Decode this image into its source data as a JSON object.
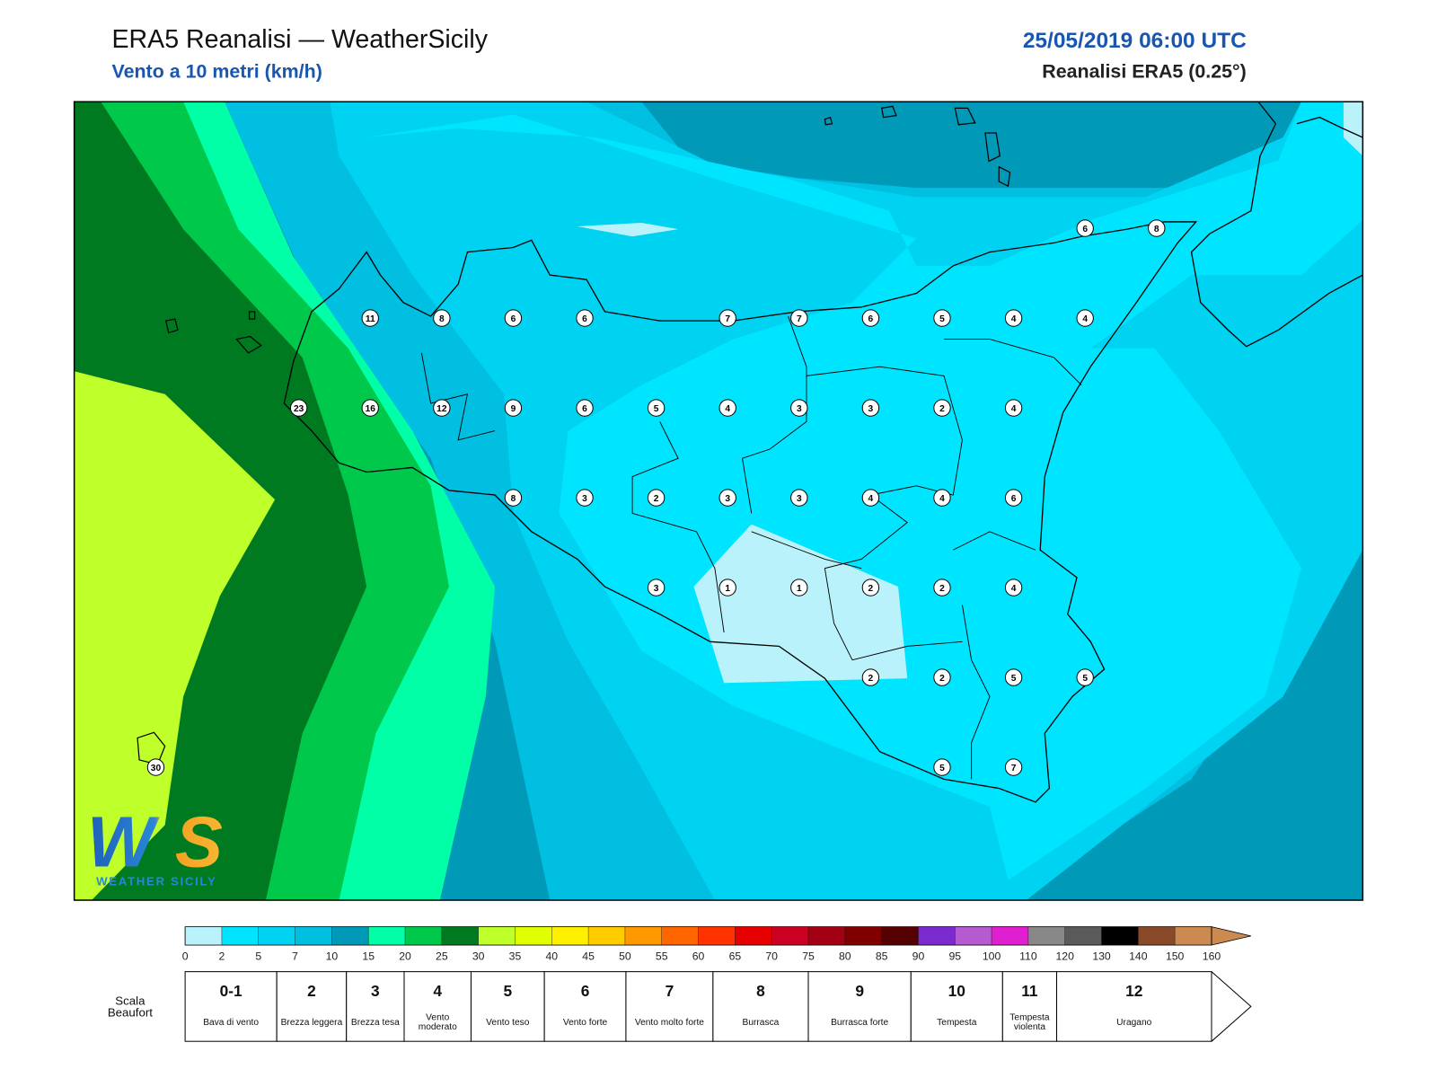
{
  "header": {
    "title": "ERA5 Reanalisi — WeatherSicily",
    "subtitle": "Vento a 10 metri (km/h)",
    "datetime": "25/05/2019 06:00 UTC",
    "source": "Reanalisi ERA5 (0.25°)"
  },
  "wind_points": {
    "rows": [
      [
        6,
        8
      ],
      [
        11,
        8,
        6,
        6,
        7,
        7,
        6,
        5,
        4,
        4
      ],
      [
        23,
        16,
        12,
        9,
        6,
        5,
        4,
        3,
        3,
        2,
        4
      ],
      [
        8,
        3,
        2,
        3,
        3,
        4,
        4,
        6
      ],
      [
        3,
        1,
        1,
        2,
        2,
        4
      ],
      [
        2,
        2,
        5,
        5
      ],
      [
        30,
        5,
        7
      ]
    ]
  },
  "colorbar": {
    "ticks": [
      0,
      2,
      5,
      7,
      10,
      15,
      20,
      25,
      30,
      35,
      40,
      45,
      50,
      55,
      60,
      65,
      70,
      75,
      80,
      85,
      90,
      95,
      100,
      110,
      120,
      130,
      140,
      150,
      160
    ],
    "colors": [
      "#b9f2fb",
      "#00e5ff",
      "#00d3f2",
      "#00bfe0",
      "#0099b8",
      "#00ffa6",
      "#00c84a",
      "#007a20",
      "#bfff2a",
      "#e0ff00",
      "#fff000",
      "#ffcc00",
      "#ff9900",
      "#ff6600",
      "#ff3300",
      "#e60000",
      "#cc0022",
      "#a30014",
      "#800000",
      "#550000",
      "#7b2ad0",
      "#b55ad0",
      "#e020d0",
      "#888888",
      "#5a5a5a",
      "#000000",
      "#8a4a2a",
      "#cd8a50"
    ]
  },
  "beaufort": {
    "label": "Scala Beaufort",
    "classes": [
      {
        "force": "0-1",
        "name": "Bava di vento"
      },
      {
        "force": 2,
        "name": "Brezza leggera"
      },
      {
        "force": 3,
        "name": "Brezza tesa"
      },
      {
        "force": 4,
        "name": "Vento moderato"
      },
      {
        "force": 5,
        "name": "Vento teso"
      },
      {
        "force": 6,
        "name": "Vento forte"
      },
      {
        "force": 7,
        "name": "Vento molto forte"
      },
      {
        "force": 8,
        "name": "Burrasca"
      },
      {
        "force": 9,
        "name": "Burrasca forte"
      },
      {
        "force": 10,
        "name": "Tempesta"
      },
      {
        "force": 11,
        "name": "Tempesta violenta"
      },
      {
        "force": 12,
        "name": "Uragano"
      }
    ]
  },
  "logo": {
    "mark": "WS",
    "text": "WEATHER SICILY"
  }
}
